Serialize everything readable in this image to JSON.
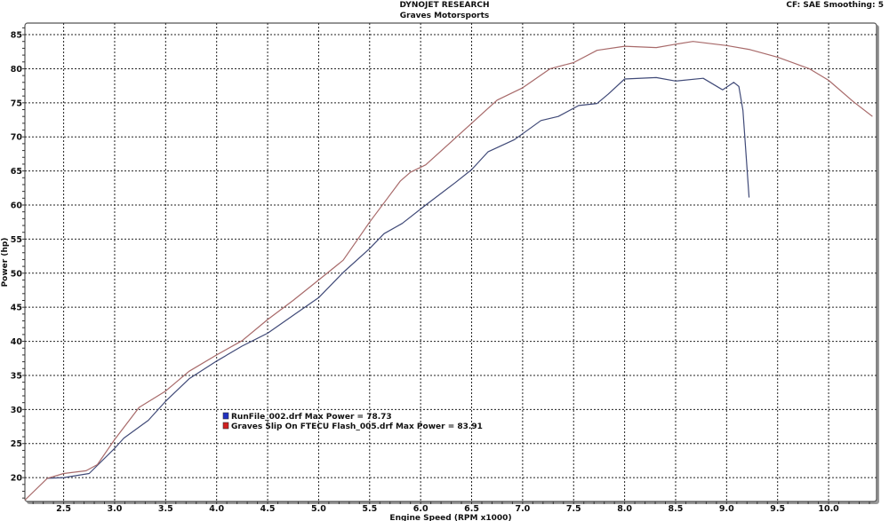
{
  "header": {
    "title": "DYNOJET RESEARCH",
    "subtitle": "Graves Motorsports",
    "info": "CF: SAE  Smoothing: 5"
  },
  "chart_data": {
    "type": "line",
    "title": "DYNOJET RESEARCH",
    "subtitle": "Graves Motorsports",
    "xlabel": "Engine Speed (RPM x1000)",
    "ylabel": "Power (hp)",
    "xlim": [
      2.12,
      10.47
    ],
    "ylim": [
      16.5,
      86.7
    ],
    "xticks": [
      "2.5",
      "3.0",
      "3.5",
      "4.0",
      "4.5",
      "5.0",
      "5.5",
      "6.0",
      "6.5",
      "7.0",
      "7.5",
      "8.0",
      "8.5",
      "9.0",
      "9.5",
      "10.0"
    ],
    "yticks": [
      "20",
      "25",
      "30",
      "35",
      "40",
      "45",
      "50",
      "55",
      "60",
      "65",
      "70",
      "75",
      "80",
      "85"
    ],
    "grid": true,
    "legend_position": "center-left",
    "series": [
      {
        "name": "RunFile_002.drf Max Power = 78.73",
        "color": "#404a78",
        "x": [
          2.34,
          2.5,
          2.75,
          3.0,
          3.09,
          3.33,
          3.5,
          3.73,
          4.0,
          4.25,
          4.5,
          4.75,
          5.0,
          5.24,
          5.5,
          5.64,
          5.82,
          6.05,
          6.34,
          6.5,
          6.66,
          6.92,
          7.18,
          7.35,
          7.55,
          7.73,
          7.84,
          8.0,
          8.31,
          8.5,
          8.77,
          8.96,
          9.07,
          9.12,
          9.16,
          9.22
        ],
        "y": [
          19.9,
          20.0,
          20.6,
          24.3,
          25.8,
          28.4,
          31.2,
          34.5,
          37.1,
          39.3,
          41.2,
          43.8,
          46.4,
          50.1,
          53.6,
          55.8,
          57.3,
          60.0,
          63.3,
          65.2,
          67.8,
          69.6,
          72.4,
          73.0,
          74.6,
          74.9,
          76.3,
          78.5,
          78.7,
          78.2,
          78.6,
          76.9,
          78.0,
          77.4,
          73.9,
          61.1
        ]
      },
      {
        "name": "Graves Slip On FTECU Flash_005.drf Max Power = 83.91",
        "color": "#a86a6a",
        "x": [
          2.12,
          2.34,
          2.5,
          2.72,
          2.83,
          3.0,
          3.24,
          3.5,
          3.73,
          4.0,
          4.25,
          4.5,
          4.75,
          5.0,
          5.24,
          5.38,
          5.5,
          5.65,
          5.8,
          5.9,
          6.05,
          6.5,
          6.75,
          7.0,
          7.27,
          7.5,
          7.73,
          8.0,
          8.31,
          8.5,
          8.67,
          9.0,
          9.23,
          9.5,
          9.81,
          10.0,
          10.24,
          10.43
        ],
        "y": [
          16.7,
          19.9,
          20.6,
          21.0,
          21.9,
          25.6,
          30.3,
          32.7,
          35.6,
          38.0,
          40.1,
          43.2,
          46.0,
          49.0,
          51.9,
          54.9,
          57.5,
          60.5,
          63.5,
          64.8,
          65.9,
          72.0,
          75.4,
          77.2,
          80.0,
          80.9,
          82.7,
          83.3,
          83.1,
          83.6,
          84.0,
          83.4,
          82.8,
          81.7,
          80.0,
          78.3,
          75.2,
          73.0
        ]
      }
    ]
  },
  "legend": {
    "items": [
      {
        "label": "RunFile_002.drf Max Power = 78.73",
        "swatch": "#2030c0"
      },
      {
        "label": "Graves Slip On FTECU Flash_005.drf Max Power = 83.91",
        "swatch": "#d02020"
      }
    ]
  }
}
